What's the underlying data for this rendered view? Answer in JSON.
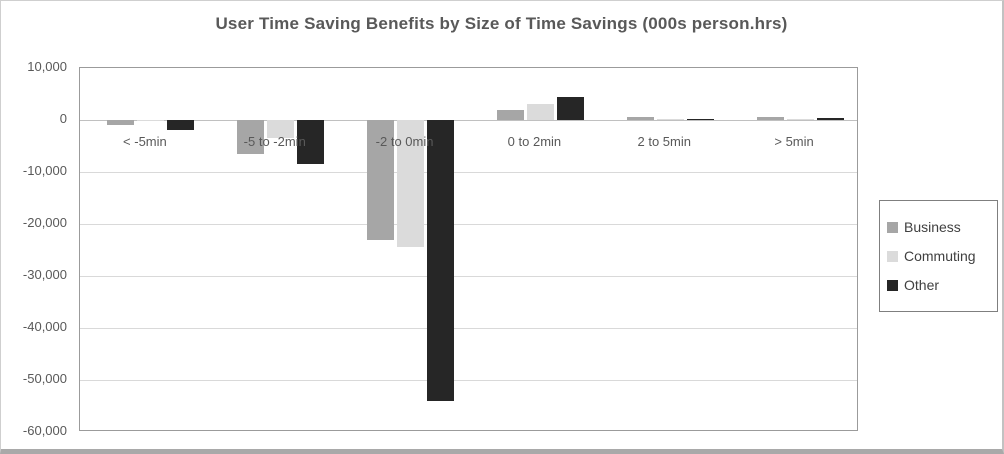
{
  "chart_data": {
    "type": "bar",
    "title": "User Time Saving Benefits by Size of Time Savings (000s person.hrs)",
    "categories": [
      "< -5min",
      "-5 to -2min",
      "-2 to 0min",
      "0 to 2min",
      "2 to 5min",
      "> 5min"
    ],
    "series": [
      {
        "name": "Business",
        "color": "#a6a6a6",
        "values": [
          -1000,
          -6500,
          -23000,
          2000,
          600,
          500
        ]
      },
      {
        "name": "Commuting",
        "color": "#dbdbdb",
        "values": [
          -100,
          -3500,
          -24500,
          3000,
          100,
          100
        ]
      },
      {
        "name": "Other",
        "color": "#262626",
        "values": [
          -2000,
          -8500,
          -54000,
          4500,
          100,
          400
        ]
      }
    ],
    "ylim": [
      -60000,
      10000
    ],
    "ytick_step": 10000,
    "ytick_labels": [
      "10,000",
      "0",
      "-10,000",
      "-20,000",
      "-30,000",
      "-40,000",
      "-50,000",
      "-60,000"
    ],
    "grid": true,
    "legend_position": "right",
    "xlabel": "",
    "ylabel": ""
  },
  "legend": {
    "items": [
      "Business",
      "Commuting",
      "Other"
    ]
  },
  "colors": {
    "title_text": "#595959",
    "axis_text": "#595959",
    "legend_text": "#404040",
    "gridline": "#d9d9d9",
    "zero_line": "#c0c0c0",
    "plot_border": "#9b9b9b",
    "legend_border": "#7f7f7f",
    "background": "#ffffff"
  }
}
